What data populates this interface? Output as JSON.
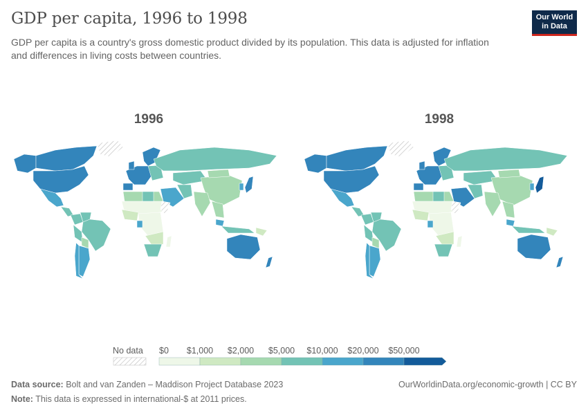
{
  "header": {
    "title": "GDP per capita, 1996 to 1998",
    "subtitle": "GDP per capita is a country's gross domestic product divided by its population. This data is adjusted for inflation and differences in living costs between countries.",
    "logo_line1": "Our World",
    "logo_line2": "in Data"
  },
  "maps": [
    {
      "year": "1996"
    },
    {
      "year": "1998"
    }
  ],
  "legend": {
    "no_data_label": "No data",
    "bins": [
      "$0",
      "$1,000",
      "$2,000",
      "$5,000",
      "$10,000",
      "$20,000",
      "$50,000"
    ],
    "colors": [
      "#eef7e8",
      "#cfe9c2",
      "#a6d9b0",
      "#73c3b5",
      "#4aa6cc",
      "#3385bb",
      "#135b9a"
    ]
  },
  "footer": {
    "source_label": "Data source:",
    "source_text": "Bolt and van Zanden – Maddison Project Database 2023",
    "note_label": "Note:",
    "note_text": "This data is expressed in international-$ at 2011 prices.",
    "url_text": "OurWorldinData.org/economic-growth | CC BY"
  }
}
